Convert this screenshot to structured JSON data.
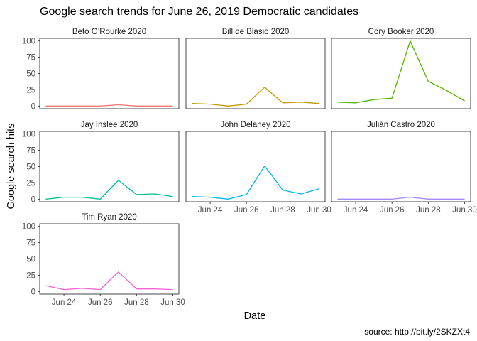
{
  "chart_data": {
    "type": "line",
    "title": "Google search trends for June 26, 2019 Democratic candidates",
    "xlabel": "Date",
    "ylabel": "Google search hits",
    "caption": "source: http://bit.ly/2SKZXt4",
    "x": [
      "2020-06-23",
      "2020-06-24",
      "2020-06-25",
      "2020-06-26",
      "2020-06-27",
      "2020-06-28",
      "2020-06-29",
      "2020-06-30"
    ],
    "x_ticks": [
      {
        "date": "2020-06-24",
        "label": "Jun 24"
      },
      {
        "date": "2020-06-26",
        "label": "Jun 26"
      },
      {
        "date": "2020-06-28",
        "label": "Jun 28"
      },
      {
        "date": "2020-06-30",
        "label": "Jun 30"
      }
    ],
    "y_ticks": [
      0,
      25,
      50,
      75,
      100
    ],
    "ylim": [
      -4,
      104
    ],
    "grid": false,
    "panels": [
      {
        "name": "Beto O’Rourke 2020",
        "color": "#F8766D",
        "values": [
          0,
          0,
          0,
          0,
          2,
          0,
          0,
          0
        ]
      },
      {
        "name": "Bill de Blasio 2020",
        "color": "#C49A00",
        "values": [
          4,
          3,
          0,
          3,
          29,
          5,
          6,
          4
        ]
      },
      {
        "name": "Cory Booker 2020",
        "color": "#53B400",
        "values": [
          6,
          5,
          10,
          12,
          100,
          38,
          24,
          8
        ]
      },
      {
        "name": "Jay Inslee 2020",
        "color": "#00C094",
        "values": [
          0,
          3,
          3,
          0,
          29,
          7,
          8,
          4
        ]
      },
      {
        "name": "John Delaney 2020",
        "color": "#00B6EB",
        "values": [
          4,
          3,
          0,
          7,
          51,
          14,
          8,
          16
        ]
      },
      {
        "name": "Julián Castro 2020",
        "color": "#A58AFF",
        "values": [
          0,
          0,
          0,
          0,
          3,
          0,
          0,
          0
        ]
      },
      {
        "name": "Tim Ryan 2020",
        "color": "#FB61D7",
        "values": [
          9,
          3,
          5,
          3,
          30,
          4,
          4,
          3
        ]
      }
    ]
  }
}
